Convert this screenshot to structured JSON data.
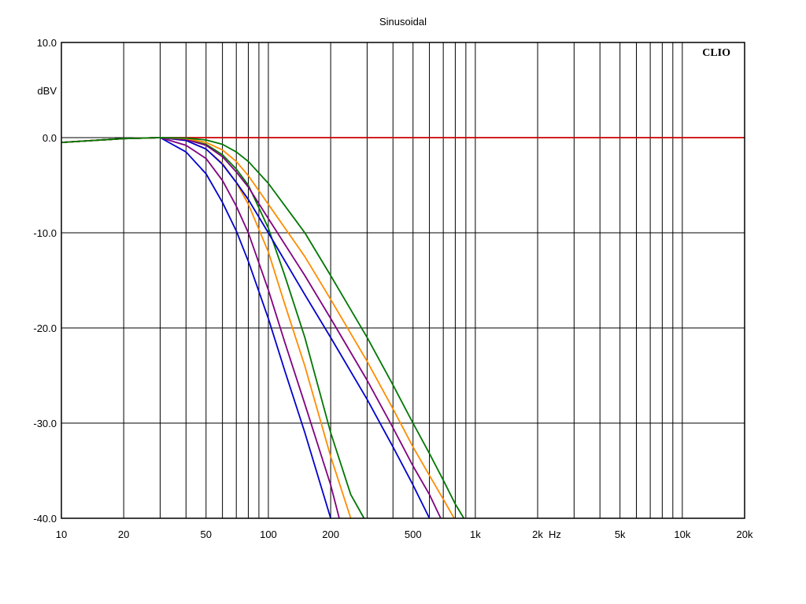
{
  "chart_data": {
    "type": "line",
    "title": "Sinusoidal",
    "brand": "CLIO",
    "xlabel": "Hz",
    "ylabel": "dBV",
    "x_scale": "log",
    "xlim": [
      10,
      20000
    ],
    "ylim": [
      -40,
      10
    ],
    "grid": true,
    "x_ticks": [
      {
        "value": 10,
        "label": "10"
      },
      {
        "value": 20,
        "label": "20"
      },
      {
        "value": 50,
        "label": "50"
      },
      {
        "value": 100,
        "label": "100"
      },
      {
        "value": 200,
        "label": "200"
      },
      {
        "value": 500,
        "label": "500"
      },
      {
        "value": 1000,
        "label": "1k"
      },
      {
        "value": 2000,
        "label": "2k"
      },
      {
        "value": 5000,
        "label": "5k"
      },
      {
        "value": 10000,
        "label": "10k"
      },
      {
        "value": 20000,
        "label": "20k"
      }
    ],
    "y_ticks": [
      {
        "value": 10,
        "label": "10.0"
      },
      {
        "value": 0,
        "label": "0.0"
      },
      {
        "value": -10,
        "label": "-10.0"
      },
      {
        "value": -20,
        "label": "-20.0"
      },
      {
        "value": -30,
        "label": "-30.0"
      },
      {
        "value": -40,
        "label": "-40.0"
      }
    ],
    "series": [
      {
        "color": "#cc0000",
        "x": [
          10,
          20,
          30,
          50,
          100,
          1000,
          10000,
          20000
        ],
        "y": [
          -0.5,
          -0.1,
          0,
          0,
          0,
          0,
          0,
          0
        ]
      },
      {
        "color": "#0000cc",
        "x": [
          10,
          20,
          30,
          40,
          50,
          60,
          70,
          80,
          100,
          120,
          150,
          200
        ],
        "y": [
          -0.5,
          -0.1,
          0,
          -1.5,
          -3.8,
          -6.8,
          -9.8,
          -13,
          -19,
          -24.5,
          -31,
          -40
        ]
      },
      {
        "color": "#800080",
        "x": [
          10,
          20,
          30,
          40,
          50,
          60,
          70,
          80,
          100,
          120,
          150,
          200,
          220
        ],
        "y": [
          -0.5,
          -0.1,
          0,
          -0.8,
          -2.2,
          -4.5,
          -7.2,
          -10,
          -16,
          -21.5,
          -28,
          -36.5,
          -40
        ]
      },
      {
        "color": "#ff8c00",
        "x": [
          10,
          20,
          30,
          40,
          50,
          60,
          70,
          80,
          100,
          120,
          150,
          200,
          250
        ],
        "y": [
          -0.5,
          -0.1,
          0,
          -0.3,
          -1.2,
          -2.7,
          -4.7,
          -7,
          -12,
          -17.5,
          -24,
          -33.5,
          -40
        ]
      },
      {
        "color": "#007700",
        "x": [
          10,
          20,
          30,
          40,
          50,
          60,
          70,
          80,
          100,
          120,
          150,
          200,
          250,
          290
        ],
        "y": [
          -0.5,
          -0.1,
          0,
          -0.2,
          -0.7,
          -1.8,
          -3.3,
          -5,
          -9.5,
          -14.5,
          -21,
          -31,
          -37.5,
          -40
        ]
      },
      {
        "color": "#0000cc",
        "x": [
          10,
          20,
          30,
          40,
          50,
          60,
          70,
          80,
          100,
          150,
          200,
          300,
          400,
          500,
          600
        ],
        "y": [
          -0.5,
          -0.1,
          0,
          -0.3,
          -1.2,
          -2.8,
          -4.7,
          -6.5,
          -10,
          -16.5,
          -21,
          -27.5,
          -32.5,
          -36.5,
          -40
        ]
      },
      {
        "color": "#800080",
        "x": [
          10,
          20,
          30,
          40,
          50,
          60,
          70,
          80,
          100,
          150,
          200,
          300,
          400,
          500,
          600,
          680
        ],
        "y": [
          -0.5,
          -0.1,
          0,
          -0.2,
          -0.8,
          -2,
          -3.6,
          -5.2,
          -8.5,
          -14.5,
          -19,
          -25.5,
          -30.5,
          -34.5,
          -37.5,
          -40
        ]
      },
      {
        "color": "#ff8c00",
        "x": [
          10,
          20,
          30,
          40,
          50,
          60,
          70,
          80,
          100,
          150,
          200,
          300,
          400,
          500,
          600,
          700,
          790
        ],
        "y": [
          -0.5,
          -0.1,
          0,
          -0.1,
          -0.5,
          -1.3,
          -2.5,
          -4,
          -7,
          -12.5,
          -17,
          -23.5,
          -28.5,
          -32.5,
          -35.5,
          -38,
          -40
        ]
      },
      {
        "color": "#007700",
        "x": [
          10,
          20,
          30,
          40,
          50,
          60,
          70,
          80,
          100,
          150,
          200,
          300,
          400,
          500,
          600,
          700,
          800,
          880
        ],
        "y": [
          -0.5,
          -0.1,
          0,
          -0.05,
          -0.25,
          -0.7,
          -1.5,
          -2.5,
          -4.8,
          -10,
          -14.5,
          -21,
          -26,
          -30,
          -33.2,
          -36,
          -38.5,
          -40
        ]
      }
    ]
  }
}
